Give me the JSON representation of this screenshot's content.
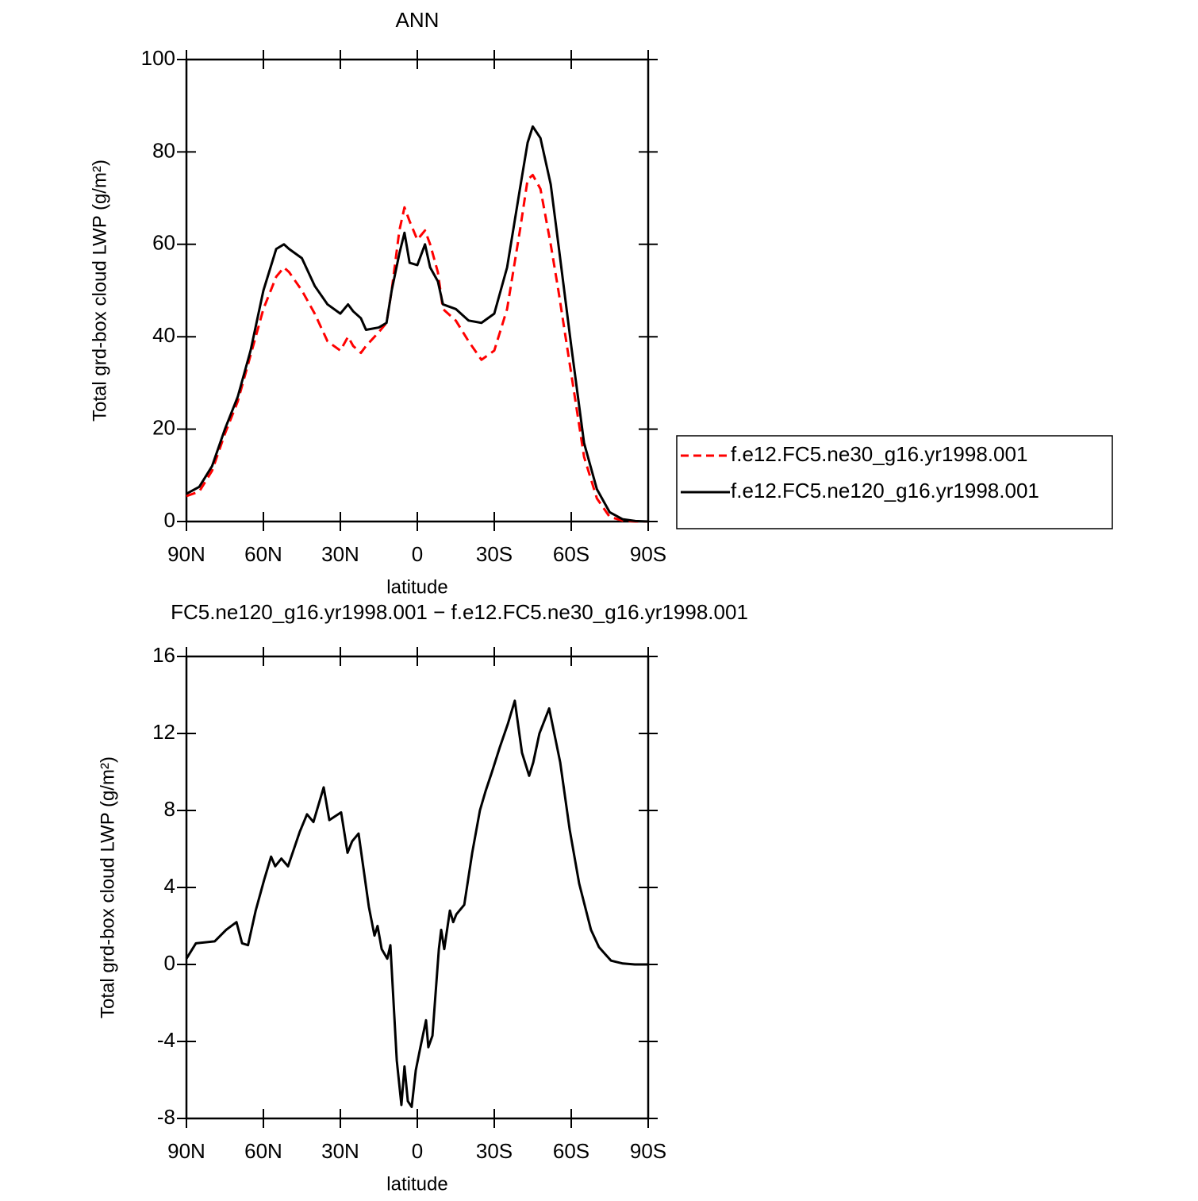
{
  "chart_data": [
    {
      "type": "line",
      "title": "ANN",
      "xlabel": "latitude",
      "ylabel": "Total grd-box cloud LWP (g/m²)",
      "x": [
        90,
        85,
        80,
        75,
        70,
        65,
        60,
        55,
        52,
        50,
        45,
        40,
        35,
        30,
        27,
        25,
        22,
        20,
        15,
        12,
        10,
        7,
        5,
        3,
        0,
        -3,
        -5,
        -8,
        -10,
        -15,
        -20,
        -25,
        -30,
        -35,
        -40,
        -43,
        -45,
        -48,
        -52,
        -55,
        -60,
        -65,
        -70,
        -75,
        -80,
        -85,
        -90
      ],
      "series": [
        {
          "name": "f.e12.FC5.ne30_g16.yr1998.001",
          "color": "#ff0000",
          "linestyle": "dashed",
          "values": [
            5.5,
            6.5,
            11,
            19,
            26,
            36,
            46,
            53,
            55,
            54,
            50,
            45,
            39,
            37,
            40,
            38,
            36.5,
            38,
            41,
            43,
            50,
            63,
            68,
            65,
            61,
            63,
            60,
            54,
            46,
            43.5,
            39,
            35,
            37,
            46,
            63,
            74,
            75,
            72,
            60,
            50,
            32,
            14,
            5,
            1,
            0.2,
            0,
            0
          ]
        },
        {
          "name": "f.e12.FC5.ne120_g16.yr1998.001",
          "color": "#000000",
          "linestyle": "solid",
          "values": [
            6,
            7.5,
            12,
            20,
            27,
            37,
            50,
            59,
            60,
            59,
            57,
            51,
            47,
            45,
            47,
            45.5,
            44,
            41.5,
            42,
            43,
            50,
            58,
            62.5,
            56,
            55.5,
            60,
            55,
            52,
            47,
            46,
            43.5,
            43,
            45,
            55,
            72,
            82,
            85.5,
            83,
            73,
            60,
            38,
            17,
            7,
            2,
            0.5,
            0.1,
            0
          ]
        }
      ],
      "xlim": [
        90,
        -90
      ],
      "xticks": [
        {
          "value": 90,
          "label": "90N"
        },
        {
          "value": 60,
          "label": "60N"
        },
        {
          "value": 30,
          "label": "30N"
        },
        0,
        {
          "value": -30,
          "label": "30S"
        },
        {
          "value": -60,
          "label": "60S"
        },
        {
          "value": -90,
          "label": "90S"
        }
      ],
      "ylim": [
        0,
        100
      ],
      "yticks": [
        0,
        20,
        40,
        60,
        80,
        100
      ]
    },
    {
      "type": "line",
      "title": "FC5.ne120_g16.yr1998.001 − f.e12.FC5.ne30_g16.yr1998.001",
      "xlabel": "latitude",
      "ylabel": "Total grd-box cloud LWP (g/m²)",
      "x": [
        90,
        86.3,
        79,
        74.5,
        70.5,
        68.3,
        66,
        63,
        59.7,
        57,
        55.4,
        53,
        50.4,
        45.8,
        43,
        40.5,
        36.5,
        34.3,
        29.7,
        27.2,
        25.4,
        22.9,
        21,
        18.9,
        16.7,
        15.5,
        13.9,
        11.7,
        10.5,
        8,
        6.2,
        5,
        3.7,
        2.2,
        0.6,
        -1.2,
        -3.4,
        -4.3,
        -5.9,
        -8.4,
        -9.3,
        -10.5,
        -12.7,
        -14,
        -15.2,
        -18.3,
        -21.4,
        -24.4,
        -26.6,
        -29.1,
        -32.2,
        -35.3,
        -38,
        -40.8,
        -43.6,
        -45.2,
        -47.6,
        -51.4,
        -55.7,
        -59.4,
        -63.1,
        -67.7,
        -70.8,
        -75.5,
        -80.1,
        -84.8,
        -90
      ],
      "values": [
        0.3,
        1.1,
        1.2,
        1.8,
        2.2,
        1.1,
        1.0,
        2.8,
        4.4,
        5.6,
        5.1,
        5.5,
        5.1,
        6.9,
        7.8,
        7.4,
        9.2,
        7.5,
        7.9,
        5.8,
        6.4,
        6.8,
        5,
        3,
        1.5,
        2,
        0.8,
        0.3,
        1,
        -5,
        -7.3,
        -5.3,
        -7.1,
        -7.4,
        -5.5,
        -4.3,
        -2.9,
        -4.3,
        -3.7,
        0.8,
        1.8,
        0.8,
        2.8,
        2.2,
        2.6,
        3.1,
        5.8,
        8,
        9,
        10,
        11.3,
        12.5,
        13.7,
        11,
        9.8,
        10.5,
        12,
        13.3,
        10.5,
        7,
        4.2,
        1.8,
        0.9,
        0.2,
        0.05,
        0,
        0
      ],
      "color": "#000000",
      "xlim": [
        90,
        -90
      ],
      "xticks": [
        {
          "value": 90,
          "label": "90N"
        },
        {
          "value": 60,
          "label": "60N"
        },
        {
          "value": 30,
          "label": "30N"
        },
        0,
        {
          "value": -30,
          "label": "30S"
        },
        {
          "value": -60,
          "label": "60S"
        },
        {
          "value": -90,
          "label": "90S"
        }
      ],
      "ylim": [
        -8,
        16
      ],
      "yticks": [
        -8,
        -4,
        0,
        4,
        8,
        12,
        16
      ]
    }
  ]
}
